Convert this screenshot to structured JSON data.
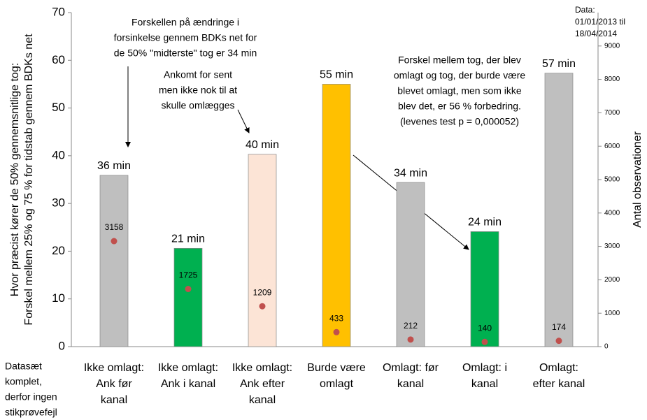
{
  "chart_data": {
    "type": "bar",
    "ylabel": [
      "Hvor præcist kører de 50% gennemsnitlige tog:",
      "Forskel mellem 25% og 75 %  for tidstab gennem BDKs net"
    ],
    "y2label": "Antal observationer",
    "categories": [
      [
        "Ikke omlagt:",
        "Ank før",
        "kanal"
      ],
      [
        "Ikke omlagt:",
        "Ank i kanal"
      ],
      [
        "Ikke omlagt:",
        "Ank efter",
        "kanal"
      ],
      [
        "Burde være",
        "omlagt"
      ],
      [
        "Omlagt: før",
        "kanal"
      ],
      [
        "Omlagt: i",
        "kanal"
      ],
      [
        "Omlagt:",
        "efter kanal"
      ]
    ],
    "series": [
      {
        "values": [
          35.9,
          20.6,
          40.3,
          55,
          34.4,
          24.1,
          57.3
        ],
        "value_labels": [
          "36 min",
          "21 min",
          "40 min",
          "55 min",
          "34 min",
          "24 min",
          "57 min"
        ],
        "colors": [
          "#bfbfbf",
          "#00b050",
          "#fce4d6",
          "#ffc000",
          "#bfbfbf",
          "#00b050",
          "#bfbfbf"
        ]
      },
      {
        "values": [
          3158,
          1725,
          1209,
          433,
          212,
          140,
          174
        ],
        "color": "#c0504d",
        "axis": "y2"
      }
    ],
    "ylim": [
      0,
      70
    ],
    "yticks": [
      0,
      10,
      20,
      30,
      40,
      50,
      60,
      70
    ],
    "y2lim": [
      0,
      10000
    ],
    "y2ticks": [
      0,
      1000,
      2000,
      3000,
      4000,
      5000,
      6000,
      7000,
      8000,
      9000
    ],
    "annotations": [
      [
        "Forskellen på ændringe i",
        "forsinkelse gennem BDKs net for",
        "de 50% \"midterste\" tog er 34 min"
      ],
      [
        "Ankomt for sent",
        "men ikke nok til at",
        "skulle omlægges"
      ],
      [
        "Forskel mellem tog, der blev",
        "omlagt og tog, der burde være",
        "blevet omlagt, men som ikke",
        "blev det, er 56 % forbedring.",
        "(levenes test p = 0,000052)"
      ]
    ],
    "data_note": [
      "Data:",
      "01/01/2013 til",
      "18/04/2014"
    ],
    "side_note": [
      "Datasæt",
      "komplet,",
      "derfor ingen",
      "stikprøvefejl"
    ]
  }
}
